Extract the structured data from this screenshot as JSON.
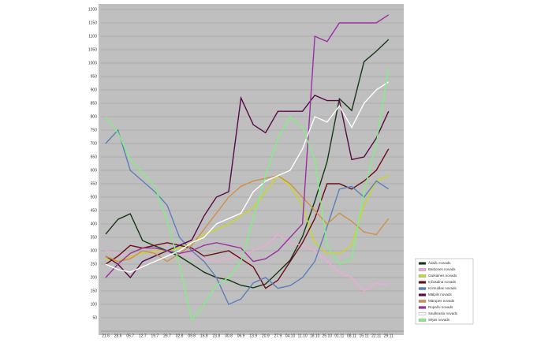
{
  "chart_data": {
    "type": "line",
    "categories": [
      "21.6",
      "28.6",
      "05.7",
      "12.7",
      "19.7",
      "26.7",
      "02.8",
      "09.8",
      "16.8",
      "23.8",
      "30.8",
      "06.9",
      "13.9",
      "20.9",
      "27.9",
      "04.10",
      "11.10",
      "18.10",
      "25.10",
      "01.11",
      "08.11",
      "15.11",
      "22.11",
      "29.11"
    ],
    "ylim": [
      0,
      1200
    ],
    "yticks": [
      50,
      100,
      150,
      200,
      250,
      300,
      350,
      400,
      450,
      500,
      550,
      600,
      650,
      700,
      750,
      800,
      850,
      900,
      950,
      1000,
      1050,
      1100,
      1150,
      1200
    ],
    "grid": true,
    "series": [
      {
        "name": "Ādažu novads",
        "color": "#163816",
        "values": [
          362,
          417,
          438,
          338,
          318,
          300,
          279,
          250,
          220,
          200,
          191,
          171,
          162,
          176,
          220,
          265,
          353,
          485,
          632,
          867,
          823,
          1005,
          1044,
          1088
        ]
      },
      {
        "name": "Baldones novads",
        "color": "#f0a8d8",
        "values": [
          300,
          290,
          280,
          290,
          300,
          300,
          290,
          280,
          270,
          260,
          270,
          280,
          300,
          320,
          360,
          330,
          320,
          300,
          260,
          220,
          200,
          150,
          180,
          170
        ]
      },
      {
        "name": "Garkalnes novads",
        "color": "#c8d820",
        "values": [
          270,
          260,
          280,
          290,
          300,
          300,
          310,
          330,
          360,
          380,
          400,
          430,
          460,
          520,
          580,
          540,
          470,
          330,
          290,
          290,
          320,
          470,
          560,
          580
        ]
      },
      {
        "name": "Iņčukalna novads",
        "color": "#6a0a1a",
        "values": [
          250,
          280,
          320,
          310,
          320,
          330,
          320,
          310,
          280,
          290,
          300,
          270,
          240,
          160,
          190,
          260,
          330,
          420,
          550,
          550,
          530,
          560,
          600,
          680
        ]
      },
      {
        "name": "Krimuldas novads",
        "color": "#5a80b8",
        "values": [
          700,
          750,
          600,
          560,
          520,
          470,
          350,
          300,
          260,
          200,
          100,
          120,
          180,
          200,
          160,
          170,
          200,
          260,
          390,
          530,
          540,
          500,
          560,
          530
        ]
      },
      {
        "name": "Mālpils novads",
        "color": "#560a48",
        "values": [
          280,
          250,
          200,
          260,
          280,
          300,
          320,
          340,
          430,
          500,
          520,
          870,
          770,
          740,
          820,
          820,
          820,
          880,
          860,
          860,
          640,
          650,
          720,
          820
        ]
      },
      {
        "name": "Mārupes novads",
        "color": "#d0904a",
        "values": [
          280,
          260,
          270,
          300,
          290,
          260,
          290,
          320,
          380,
          440,
          500,
          540,
          560,
          570,
          580,
          550,
          500,
          450,
          400,
          440,
          410,
          370,
          360,
          420
        ]
      },
      {
        "name": "Ropažu novads",
        "color": "#9a30a0",
        "values": [
          200,
          250,
          290,
          310,
          310,
          300,
          290,
          300,
          320,
          330,
          320,
          310,
          260,
          270,
          300,
          350,
          400,
          1100,
          1080,
          1150,
          1150,
          1150,
          1150,
          1180
        ]
      },
      {
        "name": "Saulkrastu novads",
        "color": "#ffffff",
        "values": [
          250,
          230,
          220,
          240,
          260,
          280,
          300,
          330,
          350,
          400,
          420,
          440,
          520,
          560,
          580,
          600,
          680,
          800,
          780,
          840,
          760,
          850,
          900,
          930
        ]
      },
      {
        "name": "Sējas novads",
        "color": "#80f080",
        "values": [
          800,
          740,
          640,
          590,
          540,
          410,
          250,
          40,
          100,
          170,
          200,
          260,
          420,
          580,
          720,
          800,
          760,
          640,
          320,
          250,
          270,
          520,
          700,
          980
        ]
      }
    ]
  }
}
